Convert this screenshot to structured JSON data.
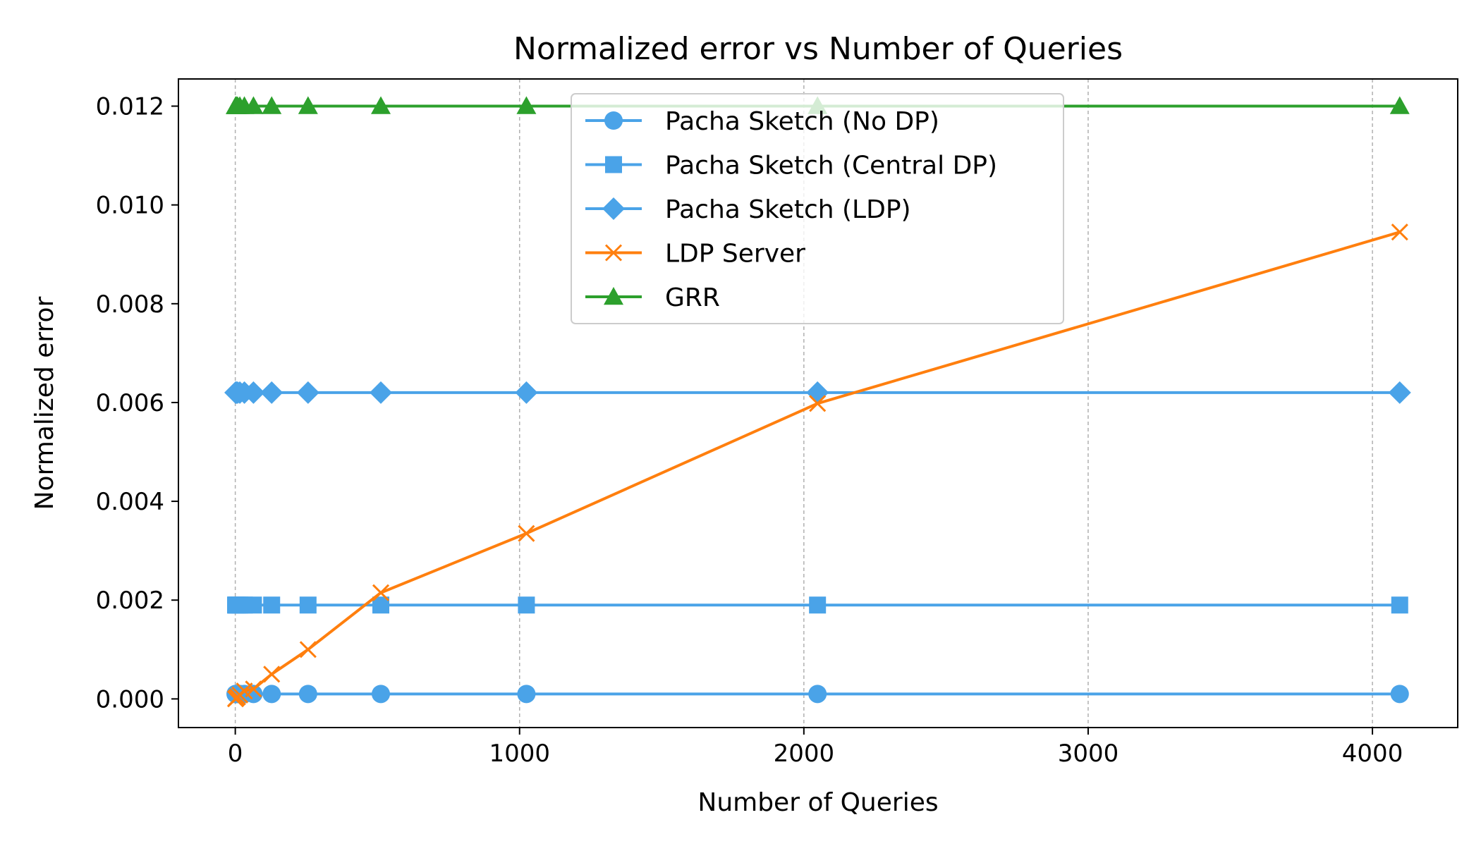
{
  "chart_data": {
    "type": "line",
    "title": "Normalized error vs Number of Queries",
    "xlabel": "Number of Queries",
    "ylabel": "Normalized error",
    "xlim": [
      -200,
      4300
    ],
    "ylim": [
      -0.00058,
      0.01255
    ],
    "xticks": [
      0,
      1000,
      2000,
      3000,
      4000
    ],
    "yticks": [
      0.0,
      0.002,
      0.004,
      0.006,
      0.008,
      0.01,
      0.012
    ],
    "xtick_labels": [
      "0",
      "1000",
      "2000",
      "3000",
      "4000"
    ],
    "ytick_labels": [
      "0.000",
      "0.002",
      "0.004",
      "0.006",
      "0.008",
      "0.010",
      "0.012"
    ],
    "grid": "vertical-dashed",
    "legend_position": "upper-center",
    "x": [
      1,
      2,
      4,
      8,
      16,
      32,
      64,
      128,
      256,
      512,
      1024,
      2048,
      4096
    ],
    "series": [
      {
        "name": "Pacha Sketch (No DP)",
        "color": "#4aa3e8",
        "marker": "circle",
        "values": [
          0.0001,
          0.0001,
          0.0001,
          0.0001,
          0.0001,
          0.0001,
          0.0001,
          0.0001,
          0.0001,
          0.0001,
          0.0001,
          0.0001,
          0.0001
        ]
      },
      {
        "name": "Pacha Sketch (Central DP)",
        "color": "#4aa3e8",
        "marker": "square",
        "values": [
          0.0019,
          0.0019,
          0.0019,
          0.0019,
          0.0019,
          0.0019,
          0.0019,
          0.0019,
          0.0019,
          0.0019,
          0.0019,
          0.0019,
          0.0019
        ]
      },
      {
        "name": "Pacha Sketch (LDP)",
        "color": "#4aa3e8",
        "marker": "diamond",
        "values": [
          0.0062,
          0.0062,
          0.0062,
          0.0062,
          0.0062,
          0.0062,
          0.0062,
          0.0062,
          0.0062,
          0.0062,
          0.0062,
          0.0062,
          0.0062
        ]
      },
      {
        "name": "LDP Server",
        "color": "#ff7f0e",
        "marker": "x",
        "values": [
          0.0,
          1e-05,
          2e-05,
          4e-05,
          8e-05,
          0.00016,
          0.0002,
          0.0005,
          0.001,
          0.00215,
          0.00335,
          0.00598,
          0.00945
        ]
      },
      {
        "name": "GRR",
        "color": "#2ca02c",
        "marker": "triangle",
        "values": [
          0.012,
          0.012,
          0.012,
          0.012,
          0.012,
          0.012,
          0.012,
          0.012,
          0.012,
          0.012,
          0.012,
          0.012,
          0.012
        ]
      }
    ]
  }
}
